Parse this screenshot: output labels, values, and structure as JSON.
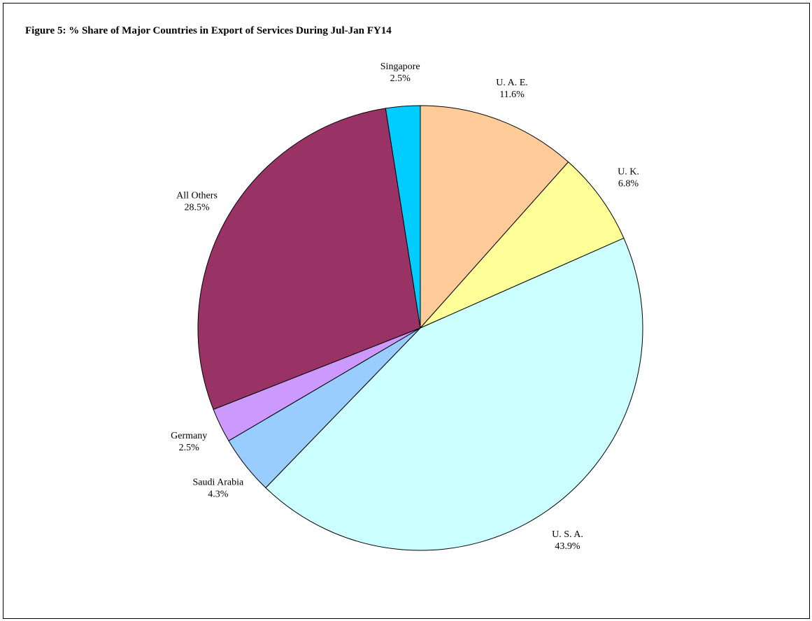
{
  "chart_data": {
    "type": "pie",
    "title": "Figure 5: % Share of Major Countries in Export of Services During Jul-Jan FY14",
    "slices": [
      {
        "name": "U. A. E.",
        "value": 11.6,
        "label": "11.6%",
        "color": "#FFCC99"
      },
      {
        "name": "U. K.",
        "value": 6.8,
        "label": "6.8%",
        "color": "#FFFF99"
      },
      {
        "name": "U. S. A.",
        "value": 43.9,
        "label": "43.9%",
        "color": "#CCFFFF"
      },
      {
        "name": "Saudi Arabia",
        "value": 4.3,
        "label": "4.3%",
        "color": "#99CCFF"
      },
      {
        "name": "Germany",
        "value": 2.5,
        "label": "2.5%",
        "color": "#CC99FF"
      },
      {
        "name": "All Others",
        "value": 28.5,
        "label": "28.5%",
        "color": "#993366"
      },
      {
        "name": "Singapore",
        "value": 2.5,
        "label": "2.5%",
        "color": "#00CCFF"
      }
    ],
    "start_angle_deg": 0,
    "direction": "clockwise",
    "legend": "none",
    "data_labels": "outside"
  }
}
